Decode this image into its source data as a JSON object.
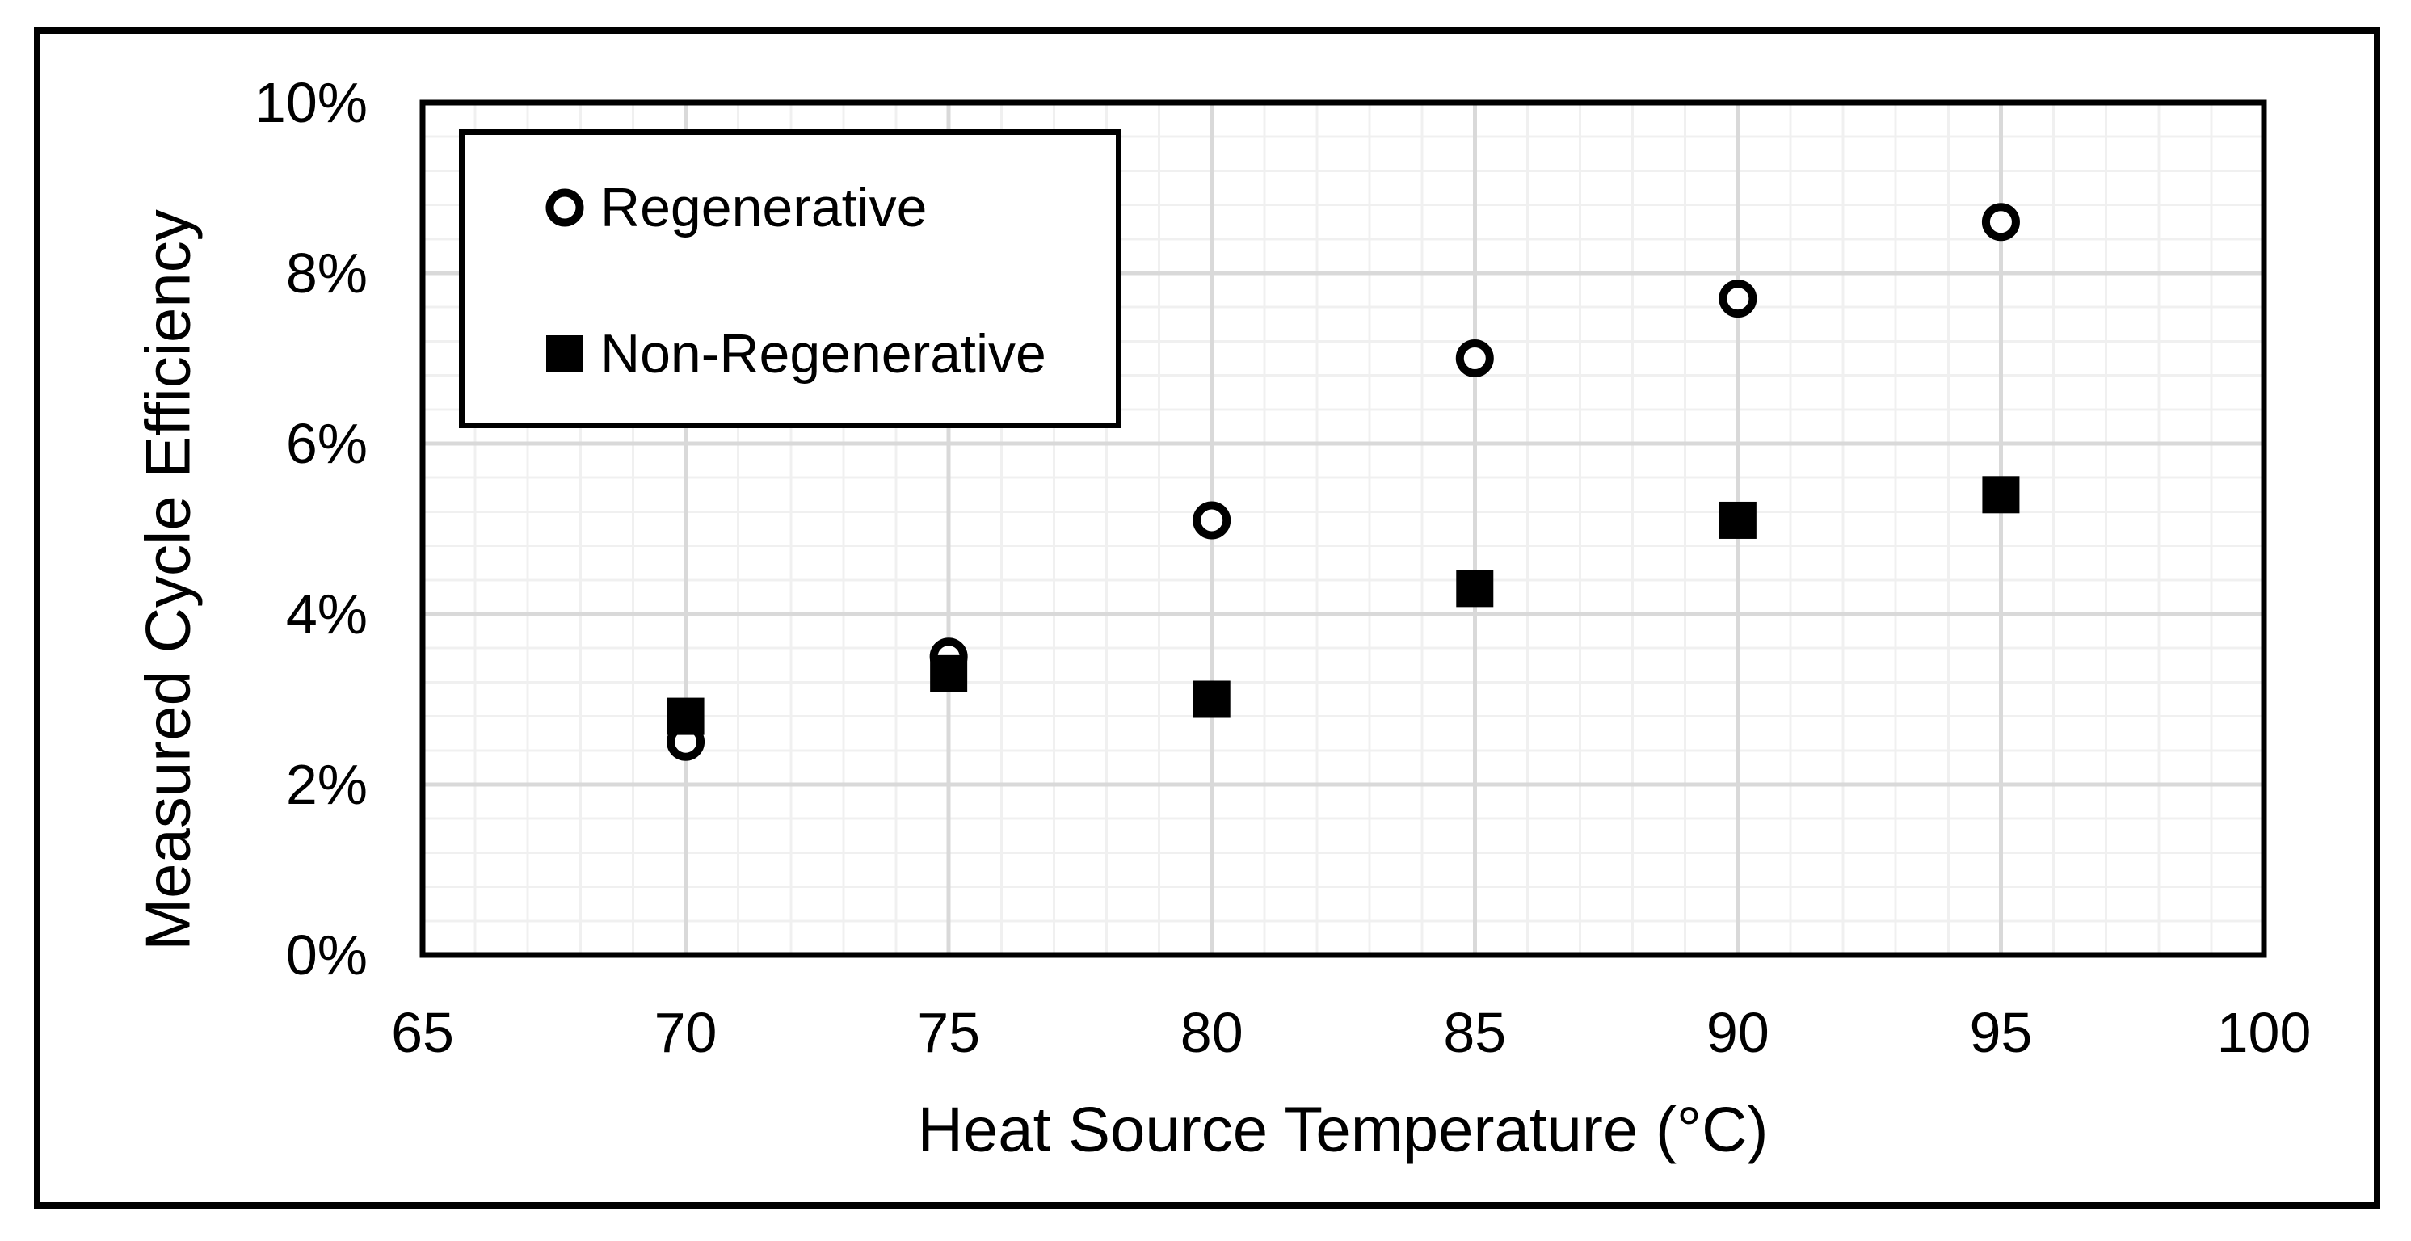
{
  "figure": {
    "background_color": "#ffffff",
    "border_color": "#000000"
  },
  "chart_data": {
    "type": "scatter",
    "title": "",
    "xlabel": "Heat Source Temperature (°C)",
    "ylabel": "Measured Cycle Efficiency",
    "xlim": [
      65,
      100
    ],
    "ylim": [
      0,
      10
    ],
    "x_ticks": [
      65,
      70,
      75,
      80,
      85,
      90,
      95,
      100
    ],
    "y_ticks": [
      0,
      2,
      4,
      6,
      8,
      10
    ],
    "y_tick_suffix": "%",
    "grid": {
      "on": true,
      "x_minor_step": 1,
      "x_major_step": 5,
      "y_minor_step": 0.4,
      "y_major_step": 2,
      "minor_color": "#f0f0f0",
      "major_color": "#d9d9d9"
    },
    "legend": {
      "position": "top-left",
      "border_color": "#000000",
      "background_color": "#ffffff"
    },
    "series": [
      {
        "name": "Regenerative",
        "marker": "open-circle",
        "color": "#000000",
        "x": [
          70,
          75,
          80,
          85,
          90,
          95
        ],
        "y_percent": [
          2.5,
          3.5,
          5.1,
          7.0,
          7.7,
          8.6
        ]
      },
      {
        "name": "Non-Regenerative",
        "marker": "filled-square",
        "color": "#000000",
        "x": [
          70,
          75,
          80,
          85,
          90,
          95
        ],
        "y_percent": [
          2.8,
          3.3,
          3.0,
          4.3,
          5.1,
          5.4
        ]
      }
    ]
  }
}
